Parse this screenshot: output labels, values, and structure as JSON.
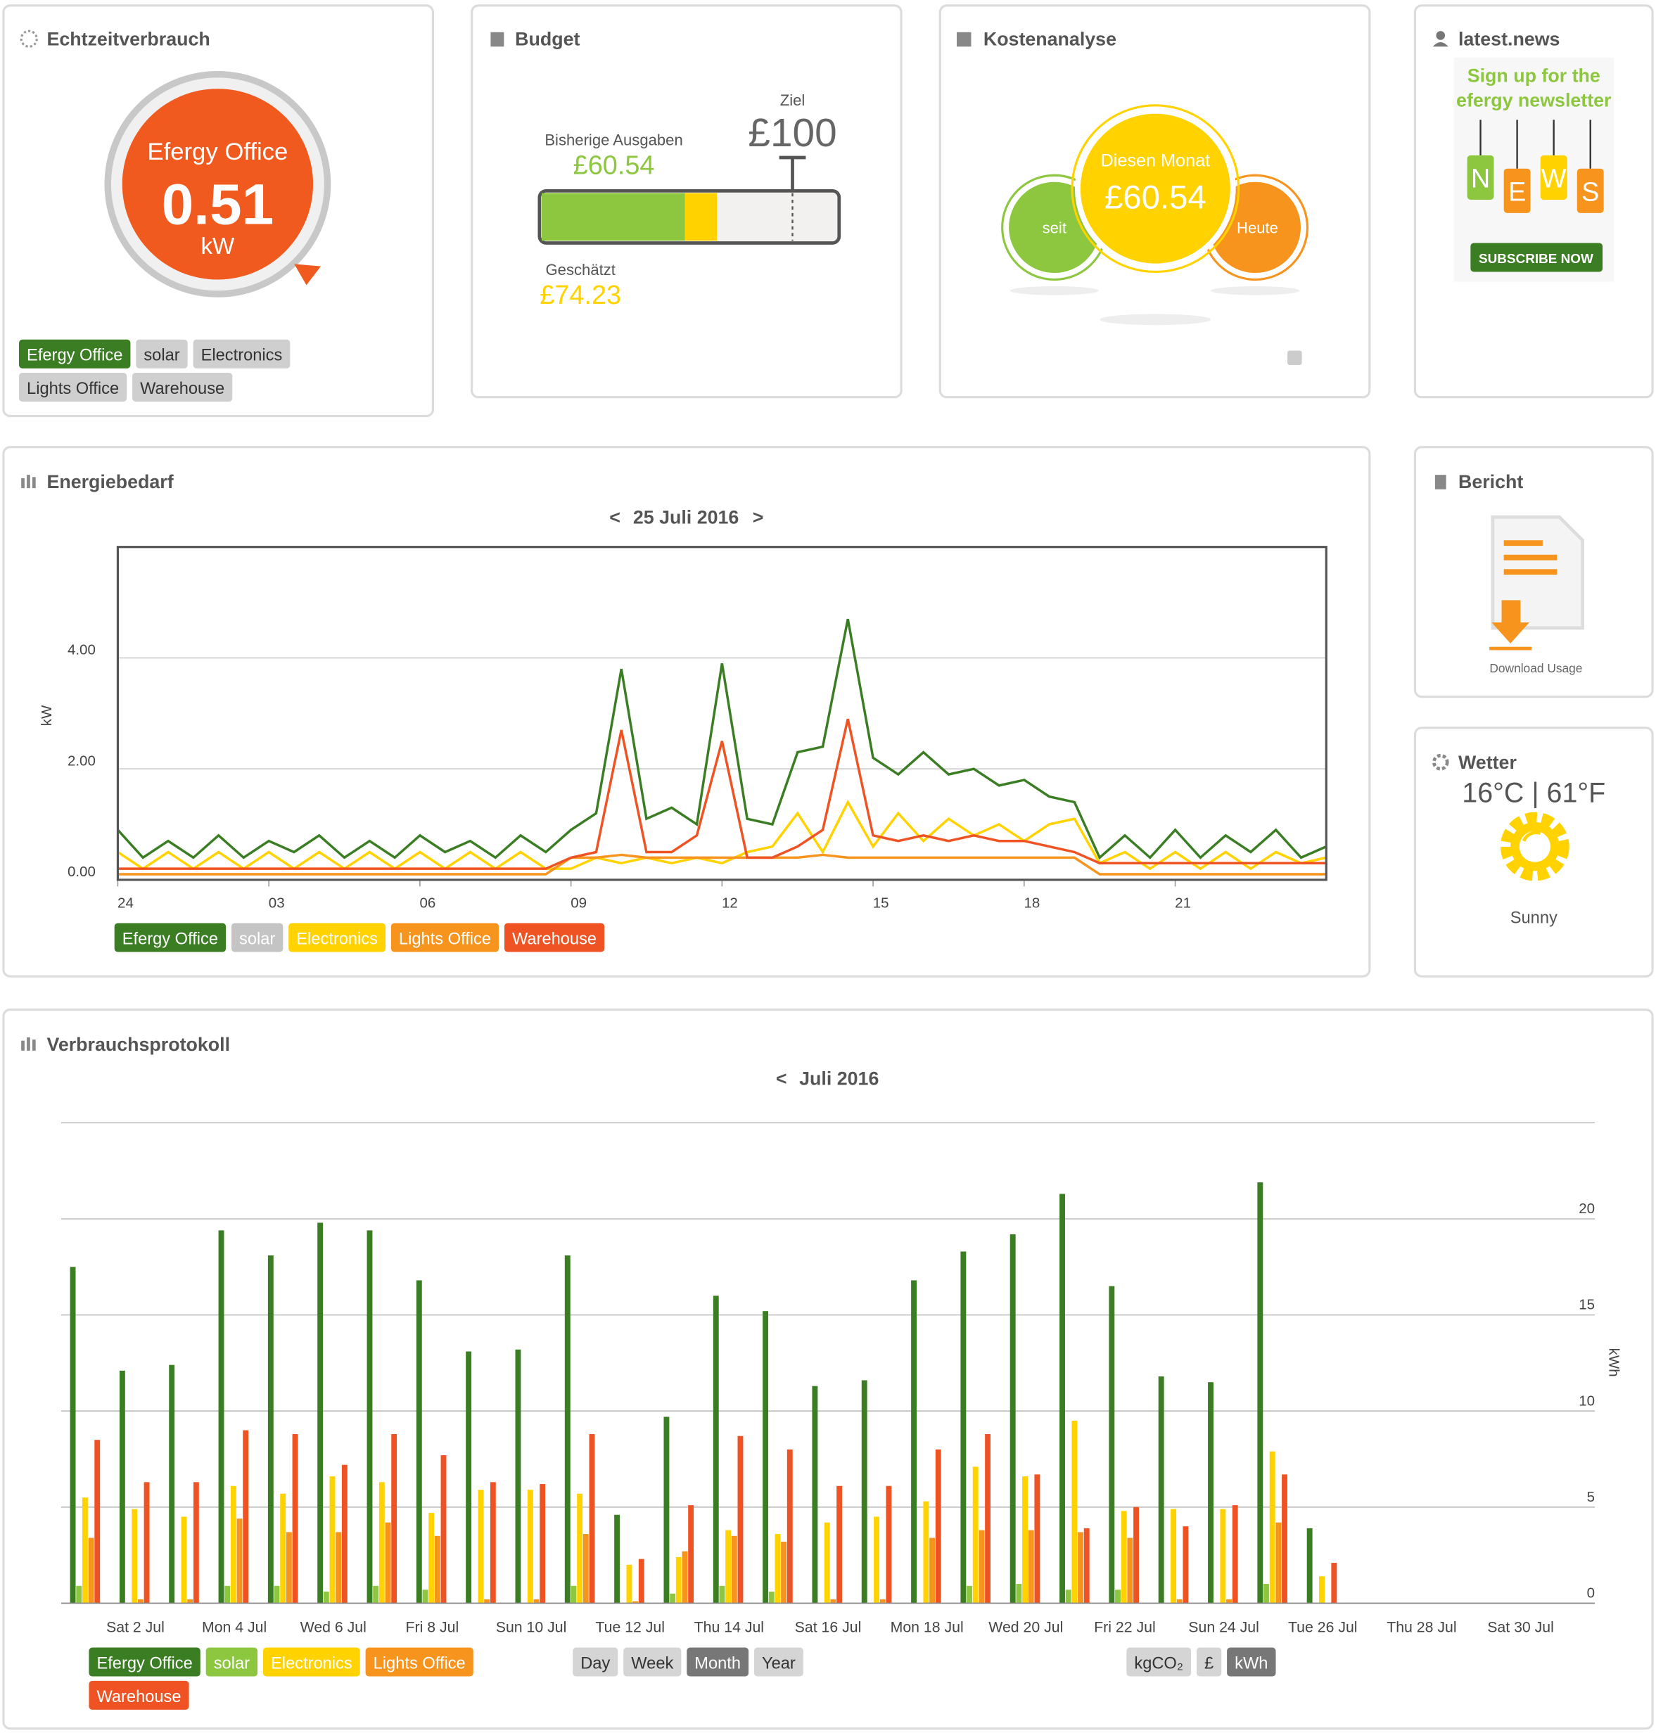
{
  "widgets": {
    "realtime": {
      "title": "Echtzeitverbrauch",
      "name": "Efergy Office",
      "value": "0.51",
      "unit": "kW",
      "tags": [
        "Efergy Office",
        "solar",
        "Electronics",
        "Lights Office",
        "Warehouse"
      ]
    },
    "budget": {
      "title": "Budget",
      "target_label": "Ziel",
      "target": "£100",
      "spent_label": "Bisherige Ausgaben",
      "spent": "£60.54",
      "estimate_label": "Geschätzt",
      "estimate": "£74.23"
    },
    "cost": {
      "title": "Kostenanalyse",
      "center_label": "Diesen Monat",
      "center_value": "£60.54",
      "left": "seit",
      "right": "Heute"
    },
    "news": {
      "title": "latest.news",
      "headline_1": "Sign up for the",
      "headline_2": "efergy newsletter",
      "letters": [
        "N",
        "E",
        "W",
        "S"
      ],
      "button": "SUBSCRIBE NOW"
    },
    "report": {
      "title": "Bericht",
      "link": "Download Usage"
    },
    "weather": {
      "title": "Wetter",
      "temperature": "16°C | 61°F",
      "condition": "Sunny"
    },
    "demand": {
      "title": "Energiebedarf",
      "prev": "<",
      "date": "25 Juli 2016",
      "next": ">"
    },
    "log": {
      "title": "Verbrauchsprotokoll",
      "prev": "<",
      "date": "Juli 2016",
      "periods": [
        "Day",
        "Week",
        "Month",
        "Year"
      ],
      "units": [
        "kgCO₂",
        "£",
        "kWh"
      ]
    }
  },
  "chart_data": [
    {
      "type": "line",
      "y_label": "kW",
      "grid": true,
      "x": [
        0,
        0.5,
        1,
        1.5,
        2,
        2.5,
        3,
        3.5,
        4,
        4.5,
        5,
        5.5,
        6,
        6.5,
        7,
        7.5,
        8,
        8.5,
        9,
        9.5,
        10,
        10.5,
        11,
        11.5,
        12,
        12.5,
        13,
        13.5,
        14,
        14.5,
        15,
        15.5,
        16,
        16.5,
        17,
        17.5,
        18,
        18.5,
        19,
        19.5,
        20,
        20.5,
        21,
        21.5,
        22,
        22.5,
        23,
        23.5,
        24
      ],
      "xlim": [
        0,
        24
      ],
      "xticks": [
        {
          "value": 0,
          "label": "24"
        },
        {
          "value": 3,
          "label": "03"
        },
        {
          "value": 6,
          "label": "06"
        },
        {
          "value": 9,
          "label": "09"
        },
        12,
        15,
        18,
        21
      ],
      "ylim": [
        0,
        6
      ],
      "yticks": [
        {
          "value": 0,
          "label": "0.00"
        },
        {
          "value": 2,
          "label": "2.00"
        },
        {
          "value": 4,
          "label": "4.00"
        }
      ],
      "series": [
        {
          "name": "Efergy Office",
          "color": "#3a7d23",
          "values": [
            0.9,
            0.4,
            0.7,
            0.4,
            0.8,
            0.4,
            0.7,
            0.5,
            0.8,
            0.4,
            0.7,
            0.4,
            0.8,
            0.5,
            0.7,
            0.4,
            0.8,
            0.5,
            0.9,
            1.2,
            3.8,
            1.1,
            1.3,
            1.0,
            3.9,
            1.1,
            1.0,
            2.3,
            2.4,
            4.7,
            2.2,
            1.9,
            2.3,
            1.9,
            2.0,
            1.7,
            1.8,
            1.5,
            1.4,
            0.4,
            0.8,
            0.4,
            0.9,
            0.4,
            0.8,
            0.5,
            0.9,
            0.4,
            0.6
          ]
        },
        {
          "name": "solar",
          "color": "#c4c4c4",
          "values": [
            null,
            null,
            null,
            null,
            null,
            null,
            null,
            null,
            null,
            null,
            null,
            null,
            null,
            null,
            null,
            null,
            null,
            null,
            null,
            null,
            null,
            null,
            null,
            null,
            null,
            null,
            null,
            null,
            null,
            null,
            null,
            null,
            null,
            null,
            null,
            null,
            null,
            null,
            null,
            null,
            null,
            null,
            null,
            null,
            null,
            null,
            null,
            null,
            null
          ]
        },
        {
          "name": "Electronics",
          "color": "#ffd200",
          "values": [
            0.5,
            0.2,
            0.5,
            0.2,
            0.5,
            0.2,
            0.5,
            0.2,
            0.5,
            0.2,
            0.5,
            0.2,
            0.5,
            0.2,
            0.5,
            0.2,
            0.5,
            0.2,
            0.2,
            0.4,
            0.3,
            0.4,
            0.3,
            0.4,
            0.3,
            0.5,
            0.6,
            1.2,
            0.5,
            1.4,
            0.6,
            1.2,
            0.7,
            1.1,
            0.8,
            1.0,
            0.7,
            1.0,
            1.1,
            0.3,
            0.5,
            0.2,
            0.5,
            0.2,
            0.5,
            0.2,
            0.5,
            0.3,
            0.4
          ]
        },
        {
          "name": "Lights Office",
          "color": "#f7941d",
          "values": [
            0.1,
            0.1,
            0.1,
            0.1,
            0.1,
            0.1,
            0.1,
            0.1,
            0.1,
            0.1,
            0.1,
            0.1,
            0.1,
            0.1,
            0.1,
            0.1,
            0.1,
            0.1,
            0.4,
            0.4,
            0.45,
            0.4,
            0.4,
            0.4,
            0.4,
            0.4,
            0.4,
            0.4,
            0.45,
            0.4,
            0.4,
            0.4,
            0.4,
            0.4,
            0.4,
            0.4,
            0.4,
            0.4,
            0.4,
            0.1,
            0.1,
            0.1,
            0.1,
            0.1,
            0.1,
            0.1,
            0.1,
            0.1,
            0.1
          ]
        },
        {
          "name": "Warehouse",
          "color": "#ef5323",
          "values": [
            0.2,
            0.2,
            0.2,
            0.2,
            0.2,
            0.2,
            0.2,
            0.2,
            0.2,
            0.2,
            0.2,
            0.2,
            0.2,
            0.2,
            0.2,
            0.2,
            0.2,
            0.2,
            0.4,
            0.5,
            2.7,
            0.5,
            0.5,
            0.8,
            2.5,
            0.4,
            0.4,
            0.6,
            0.9,
            2.9,
            0.8,
            0.7,
            0.8,
            0.7,
            0.8,
            0.7,
            0.7,
            0.6,
            0.5,
            0.3,
            0.3,
            0.3,
            0.3,
            0.3,
            0.3,
            0.3,
            0.3,
            0.3,
            0.3
          ]
        }
      ]
    },
    {
      "type": "bar",
      "y_label": "kWh",
      "y_axis_side": "right",
      "grid": true,
      "categories": [
        null,
        "Sat 2 Jul",
        null,
        "Mon 4 Jul",
        null,
        "Wed 6 Jul",
        null,
        "Fri 8 Jul",
        null,
        "Sun 10 Jul",
        null,
        "Tue 12 Jul",
        null,
        "Thu 14 Jul",
        null,
        "Sat 16 Jul",
        null,
        "Mon 18 Jul",
        null,
        "Wed 20 Jul",
        null,
        "Fri 22 Jul",
        null,
        "Sun 24 Jul",
        null,
        "Tue 26 Jul",
        null,
        "Thu 28 Jul",
        null,
        "Sat 30 Jul",
        null
      ],
      "ylim": [
        0,
        25
      ],
      "yticks": [
        0,
        5,
        10,
        15,
        20
      ],
      "series": [
        {
          "name": "Efergy Office",
          "color": "#3a7d23",
          "values": [
            17.5,
            12.1,
            12.4,
            19.4,
            18.1,
            19.8,
            19.4,
            16.8,
            13.1,
            13.2,
            18.1,
            4.6,
            9.7,
            16.0,
            15.2,
            11.3,
            11.6,
            16.8,
            18.3,
            19.2,
            21.3,
            16.5,
            11.8,
            11.5,
            21.9,
            3.9,
            null,
            null,
            null,
            null,
            null
          ]
        },
        {
          "name": "solar",
          "color": "#8dc63f",
          "values": [
            0.9,
            0,
            0,
            0.9,
            0.9,
            0.6,
            0.9,
            0.7,
            0,
            0,
            0.9,
            0,
            0.5,
            0.9,
            0.6,
            0,
            0,
            0,
            0.9,
            1.0,
            0.7,
            0.7,
            0,
            0,
            1.0,
            0,
            null,
            null,
            null,
            null,
            null
          ]
        },
        {
          "name": "Electronics",
          "color": "#ffd200",
          "values": [
            5.5,
            4.9,
            4.5,
            6.1,
            5.7,
            6.6,
            6.3,
            4.7,
            5.9,
            5.9,
            5.7,
            2.0,
            2.4,
            3.8,
            3.6,
            4.2,
            4.5,
            5.3,
            7.1,
            6.6,
            9.5,
            4.8,
            4.9,
            4.9,
            7.9,
            1.4,
            null,
            null,
            null,
            null,
            null
          ]
        },
        {
          "name": "Lights Office",
          "color": "#f7941d",
          "values": [
            3.4,
            0.2,
            0.2,
            4.4,
            3.7,
            3.7,
            4.2,
            3.5,
            0.2,
            0.2,
            3.6,
            0.1,
            2.7,
            3.5,
            3.2,
            0.2,
            0.2,
            3.4,
            3.8,
            3.8,
            3.7,
            3.4,
            0.2,
            0.2,
            4.2,
            0,
            null,
            null,
            null,
            null,
            null
          ]
        },
        {
          "name": "Warehouse",
          "color": "#ef5323",
          "values": [
            8.5,
            6.3,
            6.3,
            9.0,
            8.8,
            7.2,
            8.8,
            7.7,
            6.3,
            6.2,
            8.8,
            2.3,
            5.1,
            8.7,
            8.0,
            6.1,
            6.1,
            8.0,
            8.8,
            6.7,
            3.9,
            5.0,
            4.0,
            5.1,
            6.7,
            2.1,
            null,
            null,
            null,
            null,
            null
          ]
        }
      ]
    }
  ]
}
